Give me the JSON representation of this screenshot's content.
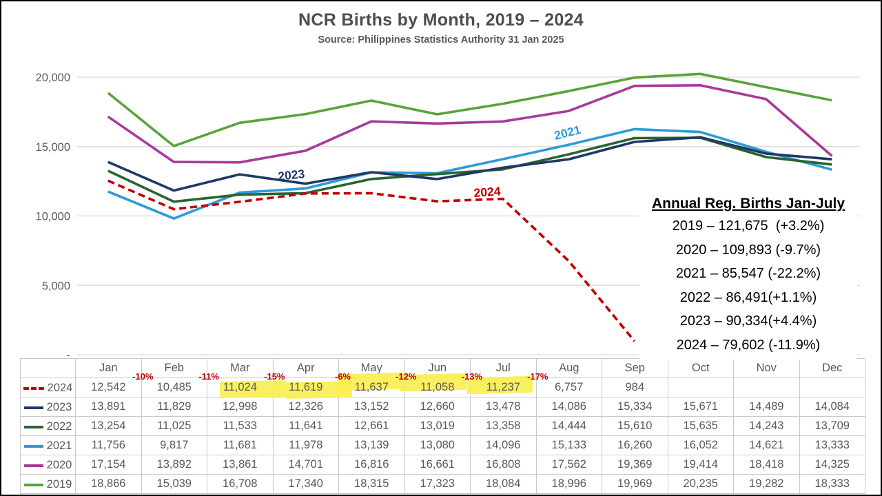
{
  "header": {
    "title": "NCR Births by Month, 2019 – 2024",
    "subtitle": "Source: Philippines Statistics Authority 31 Jan 2025"
  },
  "chart_data": {
    "type": "line",
    "x": [
      "Jan",
      "Feb",
      "Mar",
      "Apr",
      "May",
      "Jun",
      "Jul",
      "Aug",
      "Sep",
      "Oct",
      "Nov",
      "Dec"
    ],
    "series": [
      {
        "name": "2019",
        "color": "#5aa33c",
        "dashed": false,
        "values": [
          18866,
          15039,
          16708,
          17340,
          18315,
          17323,
          18084,
          18996,
          19969,
          20235,
          19282,
          18333
        ]
      },
      {
        "name": "2020",
        "color": "#a73a9c",
        "dashed": false,
        "values": [
          17154,
          13892,
          13861,
          14701,
          16816,
          16661,
          16808,
          17562,
          19369,
          19414,
          18418,
          14325
        ]
      },
      {
        "name": "2021",
        "color": "#2e9bd6",
        "dashed": false,
        "values": [
          11756,
          9817,
          11681,
          11978,
          13139,
          13080,
          14096,
          15133,
          16260,
          16052,
          14621,
          13333
        ]
      },
      {
        "name": "2022",
        "color": "#2a6332",
        "dashed": false,
        "values": [
          13254,
          11025,
          11533,
          11641,
          12661,
          13019,
          13358,
          14444,
          15610,
          15635,
          14243,
          13709
        ]
      },
      {
        "name": "2023",
        "color": "#1f3864",
        "dashed": false,
        "values": [
          13891,
          11829,
          12998,
          12326,
          13152,
          12660,
          13478,
          14086,
          15334,
          15671,
          14489,
          14084
        ]
      },
      {
        "name": "2024",
        "color": "#c00000",
        "dashed": true,
        "values": [
          12542,
          10485,
          11024,
          11619,
          11637,
          11058,
          11237,
          6757,
          984,
          null,
          null,
          null
        ]
      }
    ],
    "ylim": [
      0,
      20000
    ],
    "yticks": [
      {
        "value": 20000,
        "label": "20,000"
      },
      {
        "value": 15000,
        "label": "15,000"
      },
      {
        "value": 10000,
        "label": "10,000"
      },
      {
        "value": 5000,
        "label": "5,000"
      },
      {
        "value": 0,
        "label": "-"
      }
    ],
    "grid": "horizontal",
    "inline_labels": [
      {
        "series": "2023",
        "text": "2023"
      },
      {
        "series": "2021",
        "text": "2021"
      },
      {
        "series": "2024",
        "text": "2024"
      }
    ]
  },
  "annotation_box": {
    "heading": "Annual Reg. Births Jan-July",
    "lines": [
      "2019 – 121,675  (+3.2%)",
      "2020 – 109,893 (-9.7%)",
      "2021 – 85,547 (-22.2%)",
      "2022 – 86,491(+1.1%)",
      "2023 – 90,334(+4.4%)",
      "2024 – 79,602 (-11.9%)"
    ]
  },
  "table": {
    "months": [
      "Jan",
      "Feb",
      "Mar",
      "Apr",
      "May",
      "Jun",
      "Jul",
      "Aug",
      "Sep",
      "Oct",
      "Nov",
      "Dec"
    ],
    "pct_changes": [
      {
        "month": "Jan",
        "label": "-10%"
      },
      {
        "month": "Feb",
        "label": "-11%"
      },
      {
        "month": "Mar",
        "label": "-15%"
      },
      {
        "month": "Apr",
        "label": "-6%"
      },
      {
        "month": "May",
        "label": "-12%"
      },
      {
        "month": "Jun",
        "label": "-13%"
      },
      {
        "month": "Jul",
        "label": "-17%"
      }
    ],
    "rows": [
      {
        "year": "2024",
        "color": "#c00000",
        "dashed": true,
        "values": [
          "12,542",
          "10,485",
          "11,024",
          "11,619",
          "11,637",
          "11,058",
          "11,237",
          "6,757",
          "984",
          "",
          "",
          ""
        ],
        "highlight_cols": [
          2,
          3,
          4,
          5,
          6
        ]
      },
      {
        "year": "2023",
        "color": "#1f3864",
        "dashed": false,
        "values": [
          "13,891",
          "11,829",
          "12,998",
          "12,326",
          "13,152",
          "12,660",
          "13,478",
          "14,086",
          "15,334",
          "15,671",
          "14,489",
          "14,084"
        ],
        "highlight_cols": []
      },
      {
        "year": "2022",
        "color": "#2a6332",
        "dashed": false,
        "values": [
          "13,254",
          "11,025",
          "11,533",
          "11,641",
          "12,661",
          "13,019",
          "13,358",
          "14,444",
          "15,610",
          "15,635",
          "14,243",
          "13,709"
        ],
        "highlight_cols": []
      },
      {
        "year": "2021",
        "color": "#2e9bd6",
        "dashed": false,
        "values": [
          "11,756",
          "9,817",
          "11,681",
          "11,978",
          "13,139",
          "13,080",
          "14,096",
          "15,133",
          "16,260",
          "16,052",
          "14,621",
          "13,333"
        ],
        "highlight_cols": []
      },
      {
        "year": "2020",
        "color": "#a73a9c",
        "dashed": false,
        "values": [
          "17,154",
          "13,892",
          "13,861",
          "14,701",
          "16,816",
          "16,661",
          "16,808",
          "17,562",
          "19,369",
          "19,414",
          "18,418",
          "14,325"
        ],
        "highlight_cols": []
      },
      {
        "year": "2019",
        "color": "#5aa33c",
        "dashed": false,
        "values": [
          "18,866",
          "15,039",
          "16,708",
          "17,340",
          "18,315",
          "17,323",
          "18,084",
          "18,996",
          "19,969",
          "20,235",
          "19,282",
          "18,333"
        ],
        "highlight_cols": []
      }
    ]
  },
  "colors": {
    "highlight_yellow": "#f9ee4e",
    "pct_red": "#c00000",
    "text_gray": "#595959",
    "gridline": "#d9d9d9",
    "table_border": "#c9c9c9"
  }
}
